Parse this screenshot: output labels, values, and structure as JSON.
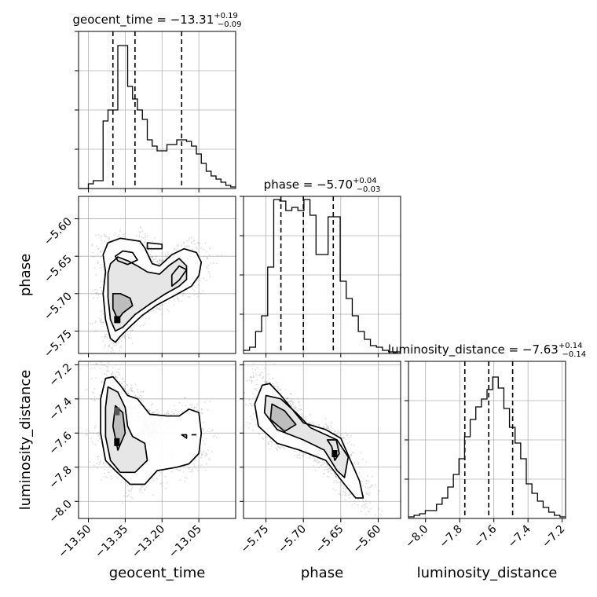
{
  "chart_data": {
    "type": "corner",
    "parameters": [
      "geocent_time",
      "phase",
      "luminosity_distance"
    ],
    "grid": true,
    "summaries": [
      {
        "param": "geocent_time",
        "label": "geocent_time",
        "median": "−13.31",
        "plus": "+0.19",
        "minus": "−0.09",
        "quantiles": [
          -13.4,
          -13.31,
          -13.12
        ]
      },
      {
        "param": "phase",
        "label": "phase",
        "median": "−5.70",
        "plus": "+0.04",
        "minus": "−0.03",
        "quantiles": [
          -5.73,
          -5.7,
          -5.66
        ]
      },
      {
        "param": "luminosity_distance",
        "label": "luminosity_distance",
        "median": "−7.63",
        "plus": "+0.14",
        "minus": "−0.14",
        "quantiles": [
          -7.77,
          -7.63,
          -7.49
        ]
      }
    ],
    "axes": {
      "geocent_time": {
        "range": [
          -13.54,
          -12.9
        ],
        "ticks": [
          -13.5,
          -13.35,
          -13.2,
          -13.05
        ],
        "tick_labels": [
          "−13.50",
          "−13.35",
          "−13.20",
          "−13.05"
        ]
      },
      "phase": {
        "range": [
          -5.78,
          -5.57
        ],
        "ticks": [
          -5.75,
          -5.7,
          -5.65,
          -5.6
        ],
        "tick_labels": [
          "−5.75",
          "−5.70",
          "−5.65",
          "−5.60"
        ]
      },
      "luminosity_distance": {
        "range": [
          -8.1,
          -7.18
        ],
        "ticks": [
          -8.0,
          -7.8,
          -7.6,
          -7.4,
          -7.2
        ],
        "tick_labels": [
          "−8.0",
          "−7.8",
          "−7.6",
          "−7.4",
          "−7.2"
        ]
      }
    },
    "histograms": {
      "geocent_time": {
        "edges_range": [
          -13.54,
          -12.9
        ],
        "counts": [
          0,
          0,
          0.03,
          0.05,
          0.05,
          0.43,
          0.5,
          0.5,
          0.91,
          0.91,
          0.65,
          0.57,
          0.5,
          0.44,
          0.31,
          0.27,
          0.24,
          0.24,
          0.28,
          0.28,
          0.31,
          0.31,
          0.3,
          0.27,
          0.22,
          0.16,
          0.11,
          0.08,
          0.06,
          0.04,
          0.02,
          0.01
        ]
      },
      "phase": {
        "edges_range": [
          -5.78,
          -5.57
        ],
        "counts": [
          0.02,
          0.04,
          0.14,
          0.24,
          0.55,
          0.98,
          0.97,
          0.91,
          0.93,
          0.91,
          0.98,
          0.88,
          0.63,
          0.63,
          0.87,
          0.87,
          0.46,
          0.35,
          0.24,
          0.14,
          0.09,
          0.05,
          0.04,
          0.02,
          0.01,
          0.01
        ]
      },
      "luminosity_distance": {
        "edges_range": [
          -8.1,
          -7.18
        ],
        "counts": [
          0.01,
          0.02,
          0.03,
          0.05,
          0.05,
          0.09,
          0.13,
          0.2,
          0.28,
          0.38,
          0.52,
          0.63,
          0.71,
          0.76,
          0.82,
          0.9,
          0.83,
          0.7,
          0.58,
          0.48,
          0.38,
          0.22,
          0.16,
          0.11,
          0.07,
          0.04,
          0.02,
          0.01
        ]
      }
    },
    "pair_plots": [
      {
        "x": "geocent_time",
        "y": "phase",
        "contours": [
          [
            [
              -13.43,
              -5.671
            ],
            [
              -13.44,
              -5.7
            ],
            [
              -13.43,
              -5.735
            ],
            [
              -13.41,
              -5.76
            ],
            [
              -13.39,
              -5.765
            ],
            [
              -13.37,
              -5.757
            ],
            [
              -13.33,
              -5.744
            ],
            [
              -13.28,
              -5.729
            ],
            [
              -13.22,
              -5.715
            ],
            [
              -13.14,
              -5.701
            ],
            [
              -13.08,
              -5.69
            ],
            [
              -13.05,
              -5.676
            ],
            [
              -13.04,
              -5.658
            ],
            [
              -13.06,
              -5.645
            ],
            [
              -13.11,
              -5.64
            ],
            [
              -13.16,
              -5.648
            ],
            [
              -13.21,
              -5.663
            ],
            [
              -13.24,
              -5.66
            ],
            [
              -13.27,
              -5.639
            ],
            [
              -13.29,
              -5.63
            ],
            [
              -13.37,
              -5.626
            ],
            [
              -13.42,
              -5.632
            ],
            [
              -13.44,
              -5.648
            ]
          ],
          [
            [
              -13.42,
              -5.673
            ],
            [
              -13.42,
              -5.705
            ],
            [
              -13.41,
              -5.735
            ],
            [
              -13.39,
              -5.75
            ],
            [
              -13.36,
              -5.745
            ],
            [
              -13.31,
              -5.728
            ],
            [
              -13.25,
              -5.714
            ],
            [
              -13.19,
              -5.701
            ],
            [
              -13.13,
              -5.69
            ],
            [
              -13.1,
              -5.681
            ],
            [
              -13.1,
              -5.663
            ],
            [
              -13.13,
              -5.653
            ],
            [
              -13.17,
              -5.662
            ],
            [
              -13.21,
              -5.674
            ],
            [
              -13.26,
              -5.671
            ],
            [
              -13.3,
              -5.663
            ],
            [
              -13.34,
              -5.656
            ],
            [
              -13.38,
              -5.651
            ],
            [
              -13.41,
              -5.66
            ]
          ],
          [
            [
              -13.4,
              -5.7
            ],
            [
              -13.4,
              -5.72
            ],
            [
              -13.38,
              -5.735
            ],
            [
              -13.36,
              -5.726
            ],
            [
              -13.32,
              -5.716
            ],
            [
              -13.33,
              -5.706
            ],
            [
              -13.37,
              -5.7
            ]
          ],
          [
            [
              -13.16,
              -5.69
            ],
            [
              -13.13,
              -5.682
            ],
            [
              -13.1,
              -5.668
            ],
            [
              -13.13,
              -5.663
            ],
            [
              -13.16,
              -5.675
            ]
          ],
          [
            [
              -13.39,
              -5.65
            ],
            [
              -13.38,
              -5.656
            ],
            [
              -13.34,
              -5.661
            ],
            [
              -13.3,
              -5.655
            ],
            [
              -13.32,
              -5.645
            ],
            [
              -13.36,
              -5.643
            ]
          ],
          [
            [
              -13.26,
              -5.632
            ],
            [
              -13.2,
              -5.634
            ],
            [
              -13.2,
              -5.64
            ],
            [
              -13.26,
              -5.64
            ]
          ]
        ]
      },
      {
        "x": "geocent_time",
        "y": "luminosity_distance",
        "contours": [
          [
            [
              -13.43,
              -7.28
            ],
            [
              -13.45,
              -7.4
            ],
            [
              -13.45,
              -7.6
            ],
            [
              -13.43,
              -7.76
            ],
            [
              -13.39,
              -7.82
            ],
            [
              -13.33,
              -7.9
            ],
            [
              -13.27,
              -7.9
            ],
            [
              -13.22,
              -7.82
            ],
            [
              -13.14,
              -7.8
            ],
            [
              -13.09,
              -7.78
            ],
            [
              -13.05,
              -7.72
            ],
            [
              -13.04,
              -7.6
            ],
            [
              -13.05,
              -7.48
            ],
            [
              -13.09,
              -7.46
            ],
            [
              -13.13,
              -7.5
            ],
            [
              -13.18,
              -7.5
            ],
            [
              -13.25,
              -7.49
            ],
            [
              -13.3,
              -7.4
            ],
            [
              -13.34,
              -7.38
            ],
            [
              -13.37,
              -7.32
            ],
            [
              -13.4,
              -7.27
            ]
          ],
          [
            [
              -13.42,
              -7.33
            ],
            [
              -13.43,
              -7.45
            ],
            [
              -13.43,
              -7.62
            ],
            [
              -13.41,
              -7.76
            ],
            [
              -13.37,
              -7.83
            ],
            [
              -13.31,
              -7.83
            ],
            [
              -13.26,
              -7.76
            ],
            [
              -13.27,
              -7.66
            ],
            [
              -13.32,
              -7.62
            ],
            [
              -13.34,
              -7.56
            ],
            [
              -13.35,
              -7.45
            ],
            [
              -13.38,
              -7.36
            ]
          ],
          [
            [
              -13.39,
              -7.44
            ],
            [
              -13.4,
              -7.56
            ],
            [
              -13.38,
              -7.7
            ],
            [
              -13.35,
              -7.6
            ],
            [
              -13.36,
              -7.48
            ]
          ],
          [
            [
              -13.12,
              -7.61
            ],
            [
              -13.1,
              -7.63
            ],
            [
              -13.1,
              -7.61
            ]
          ],
          [
            [
              -13.08,
              -7.61
            ],
            [
              -13.06,
              -7.61
            ]
          ]
        ]
      },
      {
        "x": "phase",
        "y": "luminosity_distance",
        "contours": [
          [
            [
              -5.755,
              -7.32
            ],
            [
              -5.765,
              -7.43
            ],
            [
              -5.76,
              -7.56
            ],
            [
              -5.735,
              -7.66
            ],
            [
              -5.705,
              -7.7
            ],
            [
              -5.67,
              -7.76
            ],
            [
              -5.645,
              -7.9
            ],
            [
              -5.63,
              -7.98
            ],
            [
              -5.62,
              -7.98
            ],
            [
              -5.625,
              -7.88
            ],
            [
              -5.638,
              -7.75
            ],
            [
              -5.65,
              -7.63
            ],
            [
              -5.67,
              -7.58
            ],
            [
              -5.7,
              -7.54
            ],
            [
              -5.715,
              -7.46
            ],
            [
              -5.73,
              -7.38
            ],
            [
              -5.745,
              -7.31
            ]
          ],
          [
            [
              -5.75,
              -7.38
            ],
            [
              -5.752,
              -7.48
            ],
            [
              -5.735,
              -7.58
            ],
            [
              -5.7,
              -7.64
            ],
            [
              -5.672,
              -7.7
            ],
            [
              -5.655,
              -7.82
            ],
            [
              -5.645,
              -7.86
            ],
            [
              -5.64,
              -7.74
            ],
            [
              -5.655,
              -7.64
            ],
            [
              -5.69,
              -7.57
            ],
            [
              -5.71,
              -7.48
            ],
            [
              -5.73,
              -7.4
            ]
          ],
          [
            [
              -5.742,
              -7.43
            ],
            [
              -5.744,
              -7.52
            ],
            [
              -5.725,
              -7.59
            ],
            [
              -5.71,
              -7.55
            ],
            [
              -5.725,
              -7.47
            ]
          ],
          [
            [
              -5.668,
              -7.64
            ],
            [
              -5.662,
              -7.68
            ],
            [
              -5.658,
              -7.76
            ],
            [
              -5.652,
              -7.72
            ],
            [
              -5.656,
              -7.64
            ]
          ]
        ]
      }
    ]
  }
}
